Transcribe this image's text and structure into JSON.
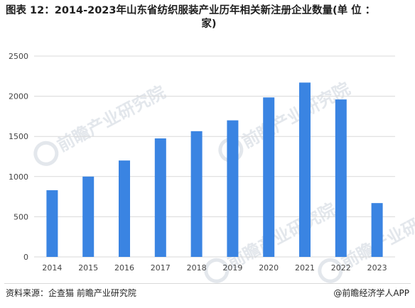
{
  "title": {
    "line1": "图表 12：2014-2023年山东省纺织服装产业历年相关新注册企业数量(单 位 ：",
    "line2": "家)"
  },
  "chart_data": {
    "type": "bar",
    "categories": [
      "2014",
      "2015",
      "2016",
      "2017",
      "2018",
      "2019",
      "2020",
      "2021",
      "2022",
      "2023"
    ],
    "values": [
      830,
      1000,
      1200,
      1475,
      1565,
      1700,
      1985,
      2170,
      1960,
      670
    ],
    "ylim": [
      0,
      2500
    ],
    "yticks": [
      "0",
      "500",
      "1000",
      "1500",
      "2000",
      "2500"
    ],
    "grid": true,
    "bar_color": "#3a84e2",
    "grid_color": "#d9d9d9"
  },
  "footer": {
    "source": "资料来源：企查猫 前瞻产业研究院",
    "credit": "@前瞻经济学人APP"
  },
  "watermark": {
    "text": "前瞻产业研究院",
    "color": "#e3e7ec"
  }
}
